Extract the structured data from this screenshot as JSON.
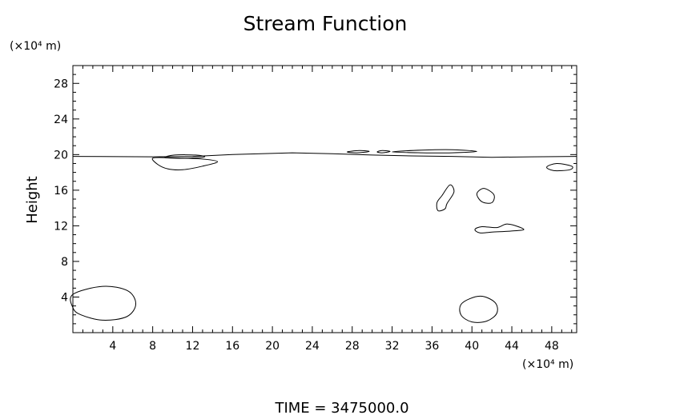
{
  "chart_data": {
    "type": "contour",
    "title": "Stream Function",
    "ylabel": "Height",
    "x_unit_label": "(×10⁴ m)",
    "y_unit_label": "(×10⁴ m)",
    "footer": "TIME  =  3475000.0",
    "xlim": [
      0,
      50.5
    ],
    "ylim": [
      0,
      30
    ],
    "x_ticks": [
      4,
      8,
      12,
      16,
      20,
      24,
      28,
      32,
      36,
      40,
      44,
      48
    ],
    "y_ticks": [
      4,
      8,
      12,
      16,
      20,
      24,
      28
    ],
    "contours": [
      {
        "closed": false,
        "points": [
          [
            0,
            19.8
          ],
          [
            8,
            19.75
          ],
          [
            12,
            19.8
          ],
          [
            16,
            20.0
          ],
          [
            22,
            20.2
          ],
          [
            26,
            20.1
          ],
          [
            30,
            19.95
          ],
          [
            34,
            19.85
          ],
          [
            38,
            19.8
          ],
          [
            42,
            19.7
          ],
          [
            46,
            19.75
          ],
          [
            50.5,
            19.8
          ]
        ]
      },
      {
        "closed": true,
        "points": [
          [
            8,
            19.6
          ],
          [
            8.5,
            18.9
          ],
          [
            9.5,
            18.4
          ],
          [
            11,
            18.3
          ],
          [
            13,
            18.7
          ],
          [
            14.5,
            19.2
          ],
          [
            13,
            19.5
          ],
          [
            11,
            19.6
          ],
          [
            9.5,
            19.65
          ]
        ]
      },
      {
        "closed": true,
        "points": [
          [
            9.2,
            19.7
          ],
          [
            10.2,
            19.95
          ],
          [
            12.3,
            19.95
          ],
          [
            13.2,
            19.75
          ],
          [
            11.5,
            19.6
          ],
          [
            10,
            19.6
          ]
        ]
      },
      {
        "closed": true,
        "points": [
          [
            27.5,
            20.3
          ],
          [
            28.7,
            20.45
          ],
          [
            29.7,
            20.35
          ],
          [
            28.5,
            20.2
          ]
        ]
      },
      {
        "closed": true,
        "points": [
          [
            30.5,
            20.3
          ],
          [
            31,
            20.45
          ],
          [
            31.8,
            20.35
          ],
          [
            31,
            20.2
          ]
        ]
      },
      {
        "closed": true,
        "points": [
          [
            32,
            20.3
          ],
          [
            35,
            20.5
          ],
          [
            38,
            20.55
          ],
          [
            40.5,
            20.35
          ],
          [
            38,
            20.2
          ],
          [
            35,
            20.2
          ]
        ]
      },
      {
        "closed": true,
        "points": [
          [
            47.5,
            18.6
          ],
          [
            48.5,
            19.0
          ],
          [
            50,
            18.7
          ],
          [
            49.8,
            18.3
          ],
          [
            48.2,
            18.2
          ]
        ]
      },
      {
        "closed": true,
        "points": [
          [
            37.5,
            14.5
          ],
          [
            38.2,
            15.8
          ],
          [
            37.8,
            16.6
          ],
          [
            37,
            15.4
          ],
          [
            36.5,
            14.6
          ],
          [
            36.6,
            13.7
          ],
          [
            37.3,
            13.9
          ]
        ]
      },
      {
        "closed": true,
        "points": [
          [
            40.5,
            15.6
          ],
          [
            41.2,
            16.2
          ],
          [
            42.2,
            15.5
          ],
          [
            42.0,
            14.6
          ],
          [
            41.0,
            14.7
          ]
        ]
      },
      {
        "closed": true,
        "points": [
          [
            40.3,
            11.6
          ],
          [
            41.0,
            11.9
          ],
          [
            42.5,
            11.8
          ],
          [
            43.6,
            12.2
          ],
          [
            45.2,
            11.6
          ],
          [
            43.8,
            11.4
          ],
          [
            42.0,
            11.3
          ],
          [
            40.8,
            11.2
          ]
        ]
      },
      {
        "closed": true,
        "points": [
          [
            0,
            4.3
          ],
          [
            3,
            5.2
          ],
          [
            5.5,
            4.7
          ],
          [
            6.3,
            3.2
          ],
          [
            5.4,
            1.8
          ],
          [
            3,
            1.4
          ],
          [
            0.8,
            2.0
          ],
          [
            0,
            2.8
          ]
        ]
      },
      {
        "closed": true,
        "points": [
          [
            40.8,
            4.1
          ],
          [
            42.3,
            3.4
          ],
          [
            42.5,
            2.2
          ],
          [
            41.5,
            1.3
          ],
          [
            40,
            1.2
          ],
          [
            38.9,
            2.0
          ],
          [
            39.0,
            3.3
          ]
        ]
      }
    ]
  }
}
